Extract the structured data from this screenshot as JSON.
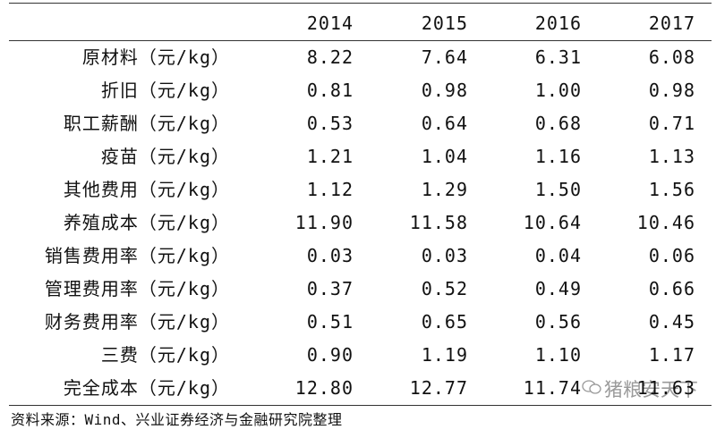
{
  "table": {
    "columns": [
      "2014",
      "2015",
      "2016",
      "2017"
    ],
    "rows": [
      {
        "label": "原材料（元/kg）",
        "values": [
          "8.22",
          "7.64",
          "6.31",
          "6.08"
        ]
      },
      {
        "label": "折旧（元/kg）",
        "values": [
          "0.81",
          "0.98",
          "1.00",
          "0.98"
        ]
      },
      {
        "label": "职工薪酬（元/kg）",
        "values": [
          "0.53",
          "0.64",
          "0.68",
          "0.71"
        ]
      },
      {
        "label": "疫苗（元/kg）",
        "values": [
          "1.21",
          "1.04",
          "1.16",
          "1.13"
        ]
      },
      {
        "label": "其他费用（元/kg）",
        "values": [
          "1.12",
          "1.29",
          "1.50",
          "1.56"
        ]
      },
      {
        "label": "养殖成本（元/kg）",
        "values": [
          "11.90",
          "11.58",
          "10.64",
          "10.46"
        ]
      },
      {
        "label": "销售费用率（元/kg）",
        "values": [
          "0.03",
          "0.03",
          "0.04",
          "0.06"
        ]
      },
      {
        "label": "管理费用率（元/kg）",
        "values": [
          "0.37",
          "0.52",
          "0.49",
          "0.66"
        ]
      },
      {
        "label": "财务费用率（元/kg）",
        "values": [
          "0.51",
          "0.65",
          "0.56",
          "0.45"
        ]
      },
      {
        "label": "三费（元/kg）",
        "values": [
          "0.90",
          "1.19",
          "1.10",
          "1.17"
        ]
      },
      {
        "label": "完全成本（元/kg）",
        "values": [
          "12.80",
          "12.77",
          "11.74",
          "11.63"
        ]
      }
    ]
  },
  "source": "资料来源：Wind、兴业证券经济与金融研究院整理",
  "watermark": "猪粮安天下"
}
